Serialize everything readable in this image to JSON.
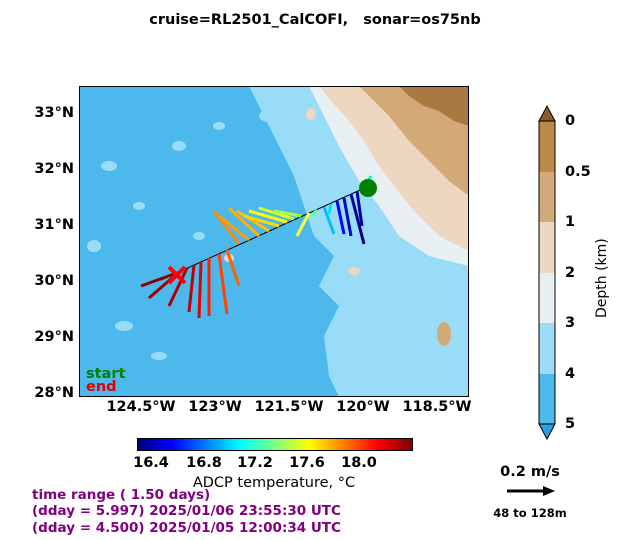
{
  "title": "cruise=RL2501_CalCOFI,   sonar=os75nb",
  "map": {
    "lat_labels": [
      "33°N",
      "32°N",
      "31°N",
      "30°N",
      "29°N",
      "28°N"
    ],
    "lon_labels": [
      "124.5°W",
      "123°W",
      "121.5°W",
      "120°W",
      "118.5°W"
    ],
    "lat_range": [
      28,
      33.5
    ],
    "lon_range": [
      -125.5,
      -118.4
    ],
    "start_label": "start",
    "end_label": "end",
    "colors": {
      "deep": "#4db8ec",
      "mid": "#99dcf8",
      "shelf": "#e8f0f4",
      "land_low": "#eed7c0",
      "land_mid": "#d4a978",
      "land_high": "#a87a42",
      "start_marker": "#008000",
      "end_marker": "#ff0000"
    }
  },
  "depth_colorbar": {
    "label": "Depth (km)",
    "ticks": [
      "0",
      "0.5",
      "1",
      "2",
      "3",
      "4",
      "5"
    ],
    "colors": [
      "#b98a48",
      "#d1a97a",
      "#ecd7c2",
      "#e8eff3",
      "#9ddcf7",
      "#4fb9ec"
    ]
  },
  "temperature_colorbar": {
    "label": "ADCP temperature, °C",
    "ticks": [
      "16.4",
      "16.8",
      "17.2",
      "17.6",
      "18.0"
    ],
    "range": [
      16.2,
      18.5
    ]
  },
  "time_info": {
    "range": "time range ( 1.50 days)",
    "end": "(dday = 5.997) 2025/01/06 23:55:30 UTC",
    "start": "(dday = 4.500) 2025/01/05 12:00:34 UTC"
  },
  "scale": {
    "label": "0.2 m/s",
    "depth_range": "48 to 128m"
  }
}
